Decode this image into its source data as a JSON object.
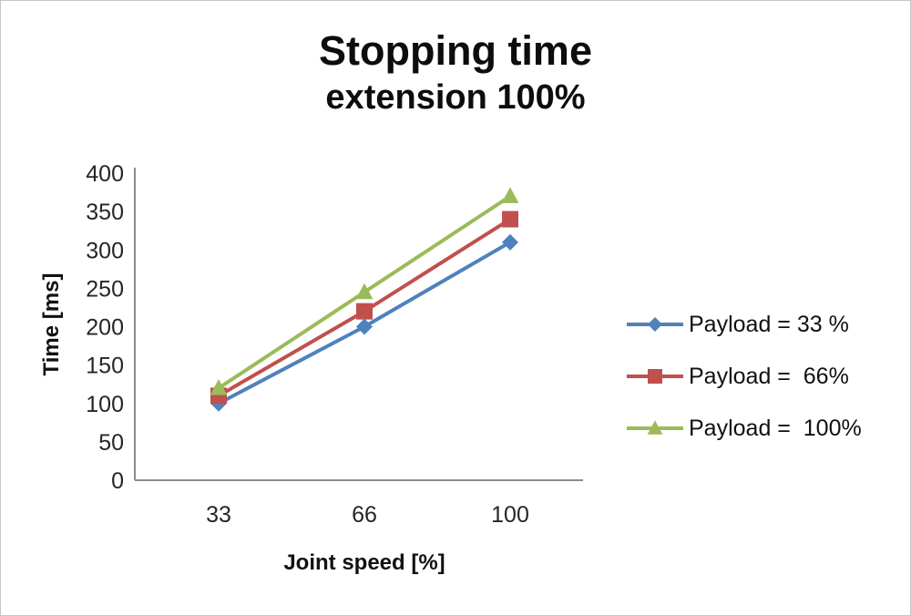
{
  "title": {
    "line1": "Stopping time",
    "line2": "extension 100%"
  },
  "chart_data": {
    "type": "line",
    "title": "Stopping time extension 100%",
    "x_categories": [
      "33",
      "66",
      "100"
    ],
    "xlabel": "Joint speed [%]",
    "ylabel": "Time [ms]",
    "ylim": [
      0,
      400
    ],
    "ytick_step": 50,
    "grid": false,
    "legend_position": "right",
    "axis_color": "#8c8c8c",
    "tick_label_color": "#262626",
    "series": [
      {
        "name": "Payload = 33 %",
        "marker": "diamond",
        "color": "#4f81bd",
        "values": [
          100,
          200,
          310
        ]
      },
      {
        "name": "Payload =  66%",
        "marker": "square",
        "color": "#c0504d",
        "values": [
          110,
          220,
          340
        ]
      },
      {
        "name": "Payload =  100%",
        "marker": "triangle",
        "color": "#9bbb59",
        "values": [
          120,
          245,
          370
        ]
      }
    ]
  }
}
